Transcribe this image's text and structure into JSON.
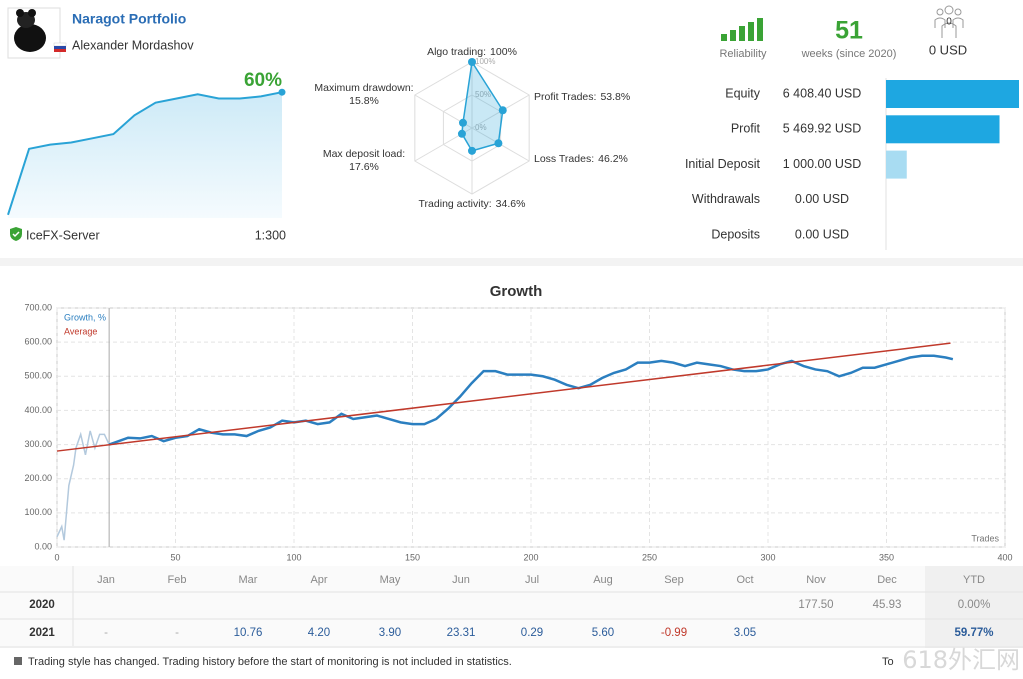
{
  "header": {
    "name": "Naragot Portfolio",
    "author": "Alexander Mordashov",
    "growth": "60%",
    "server": "IceFX-Server",
    "leverage": "1:300"
  },
  "stats": {
    "reliability_label": "Reliability",
    "weeks": "51",
    "weeks_label": "weeks (since 2020)",
    "subscribers": "0",
    "subscriber_funds": "0 USD"
  },
  "chart_data": [
    {
      "type": "area",
      "color": "#29a3d6",
      "ylim": [
        0,
        62
      ],
      "values": [
        1.5,
        33,
        35,
        36,
        38,
        40,
        49,
        55,
        57,
        59,
        57,
        57,
        58,
        60
      ]
    },
    {
      "type": "radar",
      "color": "#29a3d6",
      "categories": [
        "Algo trading:",
        "Profit Trades:",
        "Loss Trades:",
        "Trading activity:",
        "Max deposit load:",
        "Maximum drawdown:"
      ],
      "values": [
        100,
        53.8,
        46.2,
        34.6,
        17.6,
        15.8
      ],
      "value_labels": [
        "100%",
        "53.8%",
        "46.2%",
        "34.6%",
        "17.6%",
        "15.8%"
      ],
      "rlim": [
        0,
        100
      ],
      "rticks": [
        {
          "value": 0,
          "label": "0%"
        },
        {
          "value": 50,
          "label": "50%"
        },
        {
          "value": 100,
          "label": "100%"
        }
      ]
    },
    {
      "type": "hbar",
      "categories": [
        "Equity",
        "Profit",
        "Initial Deposit",
        "Withdrawals",
        "Deposits"
      ],
      "values": [
        6408.4,
        5469.92,
        1000.0,
        0.0,
        0.0
      ],
      "value_labels": [
        "6 408.40 USD",
        "5 469.92 USD",
        "1 000.00 USD",
        "0.00 USD",
        "0.00 USD"
      ],
      "xlim": [
        0,
        6408.4
      ],
      "colors": [
        "#1ea7e1",
        "#1ea7e1",
        "#a8dcf2",
        "#1ea7e1",
        "#1ea7e1"
      ]
    },
    {
      "type": "line",
      "title": "Growth",
      "x_label": "Trades",
      "grid": true,
      "legend": "upper left",
      "monitoring_start": 22,
      "xlim": [
        0,
        400
      ],
      "xticks": [
        0,
        50,
        100,
        150,
        200,
        250,
        300,
        350,
        400
      ],
      "ylim": [
        0,
        700
      ],
      "yticks": [
        {
          "value": 0,
          "label": "0.00"
        },
        {
          "value": 100,
          "label": "100.00"
        },
        {
          "value": 200,
          "label": "200.00"
        },
        {
          "value": 300,
          "label": "300.00"
        },
        {
          "value": 400,
          "label": "400.00"
        },
        {
          "value": 500,
          "label": "500.00"
        },
        {
          "value": 600,
          "label": "600.00"
        },
        {
          "value": 700,
          "label": "700.00"
        }
      ],
      "series": [
        {
          "color": "#b3c9dd",
          "x": [
            0,
            2,
            3,
            5,
            7,
            8,
            10,
            12,
            14,
            16,
            18,
            20,
            22
          ],
          "values": [
            30,
            60,
            20,
            180,
            240,
            290,
            330,
            270,
            340,
            290,
            330,
            330,
            300
          ]
        },
        {
          "name": "Growth, %",
          "color": "#2b7fc0",
          "x": [
            22,
            30,
            35,
            40,
            45,
            50,
            55,
            60,
            65,
            70,
            75,
            80,
            85,
            90,
            95,
            100,
            105,
            110,
            115,
            120,
            125,
            130,
            135,
            140,
            145,
            150,
            155,
            160,
            165,
            170,
            175,
            180,
            185,
            190,
            200,
            205,
            210,
            215,
            220,
            225,
            230,
            235,
            240,
            245,
            250,
            255,
            260,
            265,
            270,
            275,
            280,
            285,
            290,
            295,
            300,
            305,
            310,
            315,
            320,
            325,
            330,
            335,
            340,
            345,
            350,
            355,
            360,
            365,
            370,
            375,
            378
          ],
          "values": [
            300,
            320,
            318,
            325,
            310,
            320,
            325,
            345,
            335,
            330,
            330,
            325,
            340,
            350,
            370,
            365,
            370,
            360,
            365,
            390,
            375,
            380,
            385,
            375,
            365,
            360,
            360,
            375,
            405,
            440,
            480,
            515,
            515,
            505,
            505,
            500,
            490,
            475,
            465,
            475,
            495,
            510,
            520,
            540,
            540,
            545,
            540,
            530,
            540,
            535,
            530,
            520,
            515,
            515,
            520,
            535,
            545,
            530,
            520,
            515,
            500,
            510,
            525,
            525,
            535,
            545,
            555,
            560,
            560,
            555,
            550
          ]
        },
        {
          "name": "Average",
          "color": "#c0392b",
          "x": [
            0,
            377
          ],
          "values": [
            281,
            597
          ]
        }
      ]
    }
  ],
  "monthly_table": {
    "columns": [
      null,
      "Jan",
      "Feb",
      "Mar",
      "Apr",
      "May",
      "Jun",
      "Jul",
      "Aug",
      "Sep",
      "Oct",
      "Nov",
      "Dec",
      "YTD"
    ],
    "rows": [
      [
        "2020",
        null,
        null,
        null,
        null,
        null,
        null,
        null,
        null,
        null,
        null,
        "177.50",
        "45.93",
        "0.00%"
      ],
      [
        "2021",
        "-",
        "-",
        "10.76",
        "4.20",
        "3.90",
        "23.31",
        "0.29",
        "5.60",
        "-0.99",
        "3.05",
        null,
        null,
        "59.77%"
      ]
    ]
  },
  "footer": {
    "note": "Trading style has changed. Trading history before the start of monitoring is not included in statistics.",
    "cut_off": "To",
    "watermark": "618外汇网"
  }
}
